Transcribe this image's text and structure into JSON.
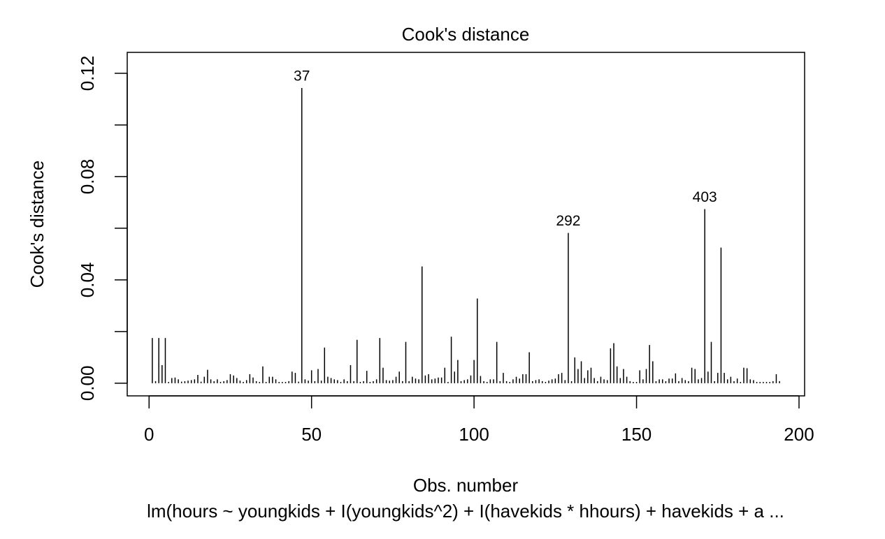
{
  "chart_data": {
    "type": "spike",
    "title": "Cook's distance",
    "xlabel": "Obs. number",
    "ylabel": "Cook's distance",
    "subtitle": "lm(hours ~ youngkids + I(youngkids^2) + I(havekids * hhours) + havekids + a ...",
    "color": "#000000",
    "x": [
      1,
      2,
      3,
      4,
      5,
      6,
      7,
      8,
      9,
      10,
      11,
      12,
      13,
      14,
      15,
      16,
      17,
      18,
      19,
      20,
      21,
      22,
      23,
      24,
      25,
      26,
      27,
      28,
      29,
      30,
      31,
      32,
      33,
      34,
      35,
      36,
      37,
      38,
      39,
      40,
      41,
      42,
      43,
      44,
      45,
      46,
      47,
      48,
      49,
      50,
      51,
      52,
      53,
      54,
      55,
      56,
      57,
      58,
      59,
      60,
      61,
      62,
      63,
      64,
      65,
      66,
      67,
      68,
      69,
      70,
      71,
      72,
      73,
      74,
      75,
      76,
      77,
      78,
      79,
      80,
      81,
      82,
      83,
      84,
      85,
      86,
      87,
      88,
      89,
      90,
      91,
      92,
      93,
      94,
      95,
      96,
      97,
      98,
      99,
      100,
      101,
      102,
      103,
      104,
      105,
      106,
      107,
      108,
      109,
      110,
      111,
      112,
      113,
      114,
      115,
      116,
      117,
      118,
      119,
      120,
      121,
      122,
      123,
      124,
      125,
      126,
      127,
      128,
      129,
      130,
      131,
      132,
      133,
      134,
      135,
      136,
      137,
      138,
      139,
      140,
      141,
      142,
      143,
      144,
      145,
      146,
      147,
      148,
      149,
      150,
      151,
      152,
      153,
      154,
      155,
      156,
      157,
      158,
      159,
      160,
      161,
      162,
      163,
      164,
      165,
      166,
      167,
      168,
      169,
      170,
      171,
      172,
      173,
      174,
      175,
      176,
      177,
      178,
      179,
      180,
      181,
      182,
      183,
      184,
      185,
      186,
      187,
      188,
      189,
      190,
      191,
      192,
      193,
      194
    ],
    "values": [
      0.0175,
      0.0008,
      0.0175,
      0.007,
      0.0175,
      0.0005,
      0.002,
      0.0022,
      0.0015,
      0.0006,
      0.0008,
      0.001,
      0.0012,
      0.0015,
      0.0032,
      0.0006,
      0.0025,
      0.0052,
      0.0015,
      0.0008,
      0.0015,
      0.0005,
      0.0008,
      0.0012,
      0.0035,
      0.003,
      0.002,
      0.001,
      0.0005,
      0.0012,
      0.0035,
      0.0022,
      0.0008,
      0.0005,
      0.0065,
      0.0005,
      0.0025,
      0.0025,
      0.0015,
      0.0005,
      0.0005,
      0.0005,
      0.0008,
      0.0045,
      0.004,
      0.0006,
      0.1143,
      0.0015,
      0.001,
      0.005,
      0.0008,
      0.0055,
      0.001,
      0.0138,
      0.0025,
      0.002,
      0.0015,
      0.0012,
      0.0005,
      0.0015,
      0.0008,
      0.007,
      0.0008,
      0.0168,
      0.0005,
      0.0008,
      0.0048,
      0.0005,
      0.0008,
      0.0015,
      0.0175,
      0.006,
      0.0012,
      0.001,
      0.0012,
      0.0025,
      0.0045,
      0.0008,
      0.016,
      0.0008,
      0.0025,
      0.0018,
      0.0015,
      0.0452,
      0.003,
      0.0035,
      0.0015,
      0.0018,
      0.0022,
      0.0022,
      0.006,
      0.0005,
      0.018,
      0.0045,
      0.009,
      0.0008,
      0.0012,
      0.0015,
      0.003,
      0.009,
      0.0328,
      0.0028,
      0.0008,
      0.0005,
      0.0015,
      0.0015,
      0.016,
      0.0008,
      0.004,
      0.0008,
      0.0005,
      0.0015,
      0.0025,
      0.0018,
      0.0035,
      0.0035,
      0.012,
      0.0008,
      0.0012,
      0.0015,
      0.0008,
      0.0005,
      0.001,
      0.0015,
      0.0018,
      0.0035,
      0.004,
      0.0012,
      0.0582,
      0.0008,
      0.01,
      0.0055,
      0.0085,
      0.002,
      0.005,
      0.006,
      0.002,
      0.0008,
      0.0025,
      0.0015,
      0.0012,
      0.0135,
      0.0155,
      0.0065,
      0.002,
      0.0055,
      0.0025,
      0.0008,
      0.0005,
      0.0005,
      0.005,
      0.0015,
      0.0055,
      0.0148,
      0.0085,
      0.0008,
      0.0015,
      0.0015,
      0.0008,
      0.0018,
      0.0018,
      0.0038,
      0.0008,
      0.002,
      0.0012,
      0.0008,
      0.006,
      0.0055,
      0.0015,
      0.002,
      0.0674,
      0.0045,
      0.016,
      0.0008,
      0.004,
      0.0525,
      0.004,
      0.0015,
      0.0025,
      0.0008,
      0.0018,
      0.0005,
      0.006,
      0.0058,
      0.0015,
      0.0012,
      0.0005,
      0.0005,
      0.0005,
      0.0005,
      0.0005,
      0.0008,
      0.0035,
      0.0008
    ],
    "point_labels": [
      {
        "x": 47,
        "label": "37"
      },
      {
        "x": 129,
        "label": "292"
      },
      {
        "x": 171,
        "label": "403"
      }
    ],
    "xlim": [
      -6.72,
      201.72
    ],
    "ylim": [
      -0.0049,
      0.1281
    ],
    "xticks": [
      0,
      50,
      100,
      150,
      200
    ],
    "yticks": [
      {
        "value": 0,
        "label": "0.00"
      },
      {
        "value": 0.04,
        "label": "0.04"
      },
      {
        "value": 0.08,
        "label": "0.08"
      },
      {
        "value": 0.12,
        "label": "0.12"
      }
    ],
    "yticks_minor": [
      0.02,
      0.06,
      0.1
    ]
  }
}
